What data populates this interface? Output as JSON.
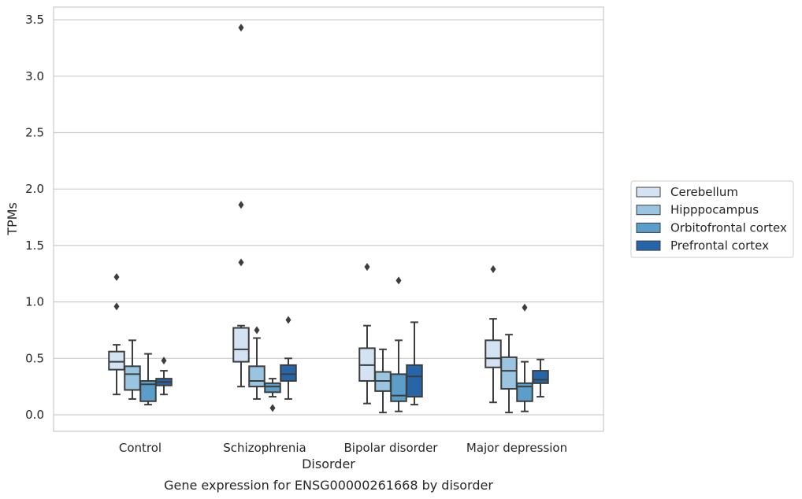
{
  "chart_data": {
    "type": "box",
    "xlabel": "Disorder",
    "ylabel": "TPMs",
    "caption": "Gene expression for ENSG00000261668 by disorder",
    "ylim": [
      -0.14,
      3.62
    ],
    "yticks": [
      "0.0",
      "0.5",
      "1.0",
      "1.5",
      "2.0",
      "2.5",
      "3.0",
      "3.5"
    ],
    "grid": "horizontal",
    "legend_placement": "right",
    "categories": [
      "Control",
      "Schizophrenia",
      "Bipolar disorder",
      "Major depression"
    ],
    "series": [
      {
        "name": "Cerebellum",
        "color": "#d4e3f3",
        "boxes": [
          {
            "whislo": 0.18,
            "q1": 0.4,
            "med": 0.47,
            "q3": 0.56,
            "whishi": 0.62,
            "fliers": [
              1.22,
              0.96
            ]
          },
          {
            "whislo": 0.25,
            "q1": 0.47,
            "med": 0.58,
            "q3": 0.77,
            "whishi": 0.79,
            "fliers": [
              3.43,
              1.86,
              1.35
            ]
          },
          {
            "whislo": 0.1,
            "q1": 0.3,
            "med": 0.44,
            "q3": 0.59,
            "whishi": 0.79,
            "fliers": [
              1.31
            ]
          },
          {
            "whislo": 0.11,
            "q1": 0.42,
            "med": 0.5,
            "q3": 0.66,
            "whishi": 0.85,
            "fliers": [
              1.29
            ]
          }
        ]
      },
      {
        "name": "Hipppocampus",
        "color": "#9ac5e0",
        "boxes": [
          {
            "whislo": 0.14,
            "q1": 0.22,
            "med": 0.36,
            "q3": 0.43,
            "whishi": 0.66,
            "fliers": []
          },
          {
            "whislo": 0.14,
            "q1": 0.25,
            "med": 0.3,
            "q3": 0.43,
            "whishi": 0.68,
            "fliers": [
              0.75
            ]
          },
          {
            "whislo": 0.02,
            "q1": 0.21,
            "med": 0.3,
            "q3": 0.38,
            "whishi": 0.58,
            "fliers": []
          },
          {
            "whislo": 0.02,
            "q1": 0.23,
            "med": 0.39,
            "q3": 0.51,
            "whishi": 0.71,
            "fliers": []
          }
        ]
      },
      {
        "name": "Orbitofrontal cortex",
        "color": "#5a9ec9",
        "boxes": [
          {
            "whislo": 0.09,
            "q1": 0.12,
            "med": 0.27,
            "q3": 0.3,
            "whishi": 0.54,
            "fliers": []
          },
          {
            "whislo": 0.16,
            "q1": 0.2,
            "med": 0.25,
            "q3": 0.28,
            "whishi": 0.32,
            "fliers": [
              0.06
            ]
          },
          {
            "whislo": 0.03,
            "q1": 0.12,
            "med": 0.17,
            "q3": 0.36,
            "whishi": 0.66,
            "fliers": [
              1.19
            ]
          },
          {
            "whislo": 0.03,
            "q1": 0.12,
            "med": 0.25,
            "q3": 0.28,
            "whishi": 0.47,
            "fliers": [
              0.95
            ]
          }
        ]
      },
      {
        "name": "Prefrontal cortex",
        "color": "#2666a8",
        "boxes": [
          {
            "whislo": 0.18,
            "q1": 0.26,
            "med": 0.29,
            "q3": 0.32,
            "whishi": 0.39,
            "fliers": [
              0.48
            ]
          },
          {
            "whislo": 0.14,
            "q1": 0.3,
            "med": 0.36,
            "q3": 0.44,
            "whishi": 0.5,
            "fliers": [
              0.84
            ]
          },
          {
            "whislo": 0.09,
            "q1": 0.16,
            "med": 0.34,
            "q3": 0.44,
            "whishi": 0.82,
            "fliers": []
          },
          {
            "whislo": 0.16,
            "q1": 0.28,
            "med": 0.31,
            "q3": 0.39,
            "whishi": 0.49,
            "fliers": []
          }
        ]
      }
    ]
  }
}
